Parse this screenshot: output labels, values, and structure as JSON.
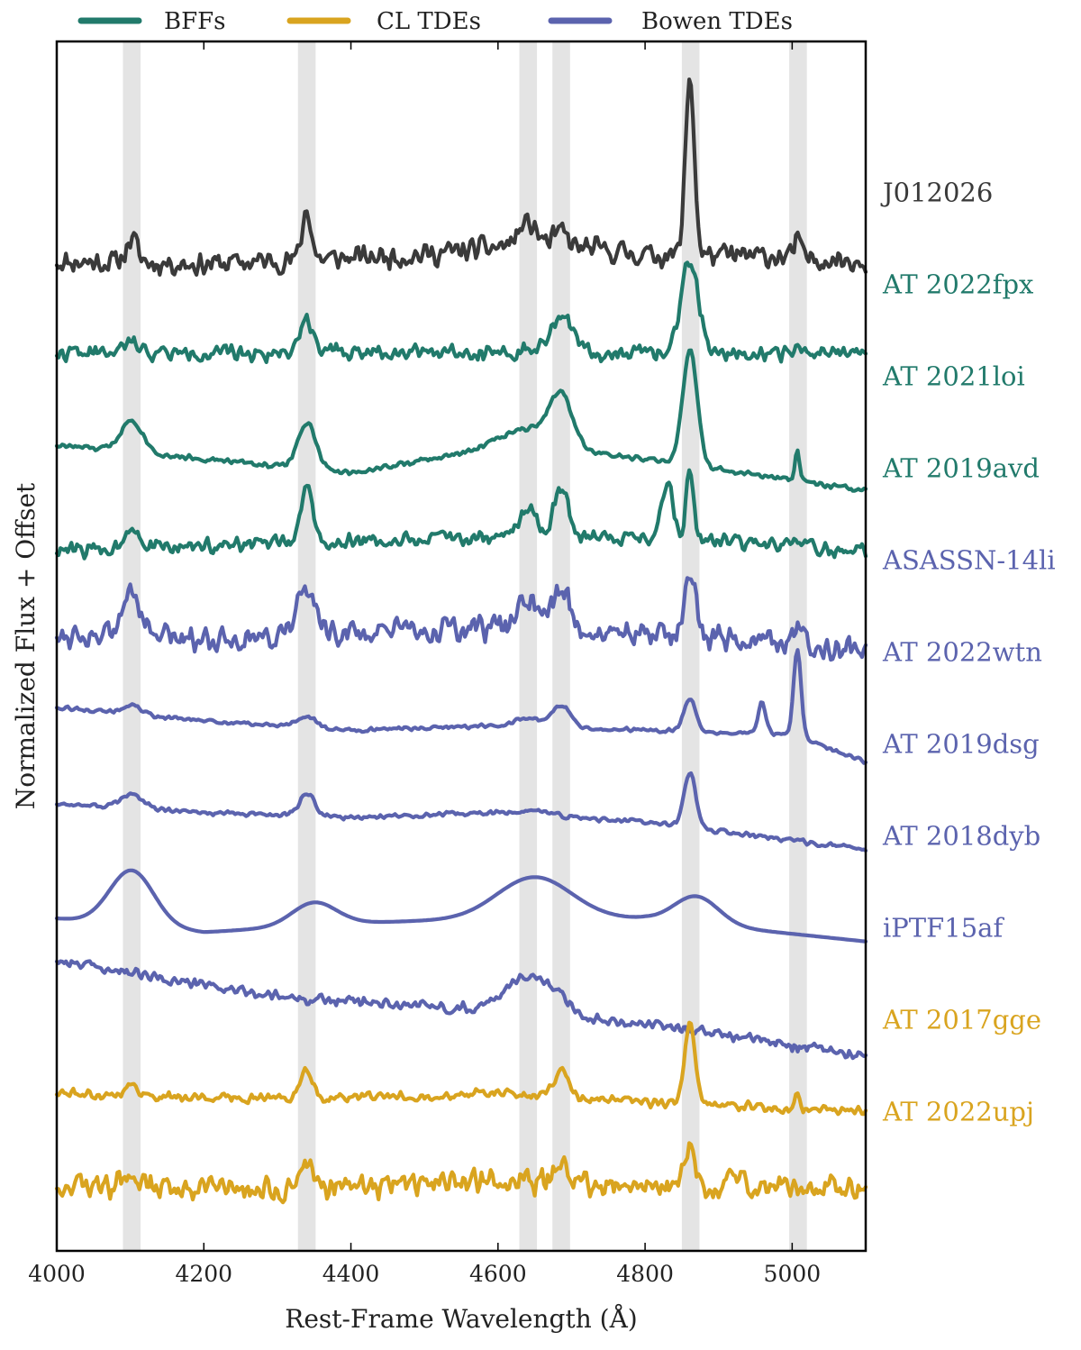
{
  "chart_data": {
    "type": "line",
    "title": "",
    "xlabel": "Rest-Frame Wavelength (Å)",
    "ylabel": "Normalized Flux + Offset",
    "xlim": [
      4000,
      5100
    ],
    "xticks": [
      4000,
      4200,
      4400,
      4600,
      4800,
      5000
    ],
    "grid": false,
    "legend_position": "top",
    "colors": {
      "BFFs": "#217a6b",
      "CL TDEs": "#d9a41f",
      "Bowen TDEs": "#5b63ae",
      "J012026": "#3a3a3a",
      "band": "#e4e4e4"
    },
    "legend": [
      {
        "name": "BFFs",
        "color": "#217a6b"
      },
      {
        "name": "CL TDEs",
        "color": "#d9a41f"
      },
      {
        "name": "Bowen TDEs",
        "color": "#5b63ae"
      }
    ],
    "shaded_bands": [
      [
        4090,
        4114
      ],
      [
        4328,
        4352
      ],
      [
        4629,
        4653
      ],
      [
        4674,
        4698
      ],
      [
        4850,
        4874
      ],
      [
        4996,
        5020
      ]
    ],
    "series": [
      {
        "name": "J012026",
        "group": "J012026",
        "color": "#3a3a3a",
        "offset": 10.0,
        "noise": 0.15,
        "seed": 11,
        "cont": [
          [
            4000,
            0.05
          ],
          [
            4200,
            0.02
          ],
          [
            4500,
            0.12
          ],
          [
            4650,
            0.25
          ],
          [
            4800,
            0.12
          ],
          [
            5000,
            0.1
          ],
          [
            5100,
            0.05
          ]
        ],
        "lines": [
          [
            4102,
            0.25,
            8
          ],
          [
            4340,
            0.55,
            6
          ],
          [
            4640,
            0.22,
            12
          ],
          [
            4686,
            0.15,
            8
          ],
          [
            4861,
            1.95,
            6
          ],
          [
            5007,
            0.25,
            3
          ]
        ]
      },
      {
        "name": "AT 2022fpx",
        "group": "BFFs",
        "color": "#217a6b",
        "offset": 9.0,
        "noise": 0.1,
        "seed": 22,
        "cont": [
          [
            4000,
            0.05
          ],
          [
            4300,
            0.05
          ],
          [
            4500,
            0.08
          ],
          [
            4700,
            0.05
          ],
          [
            5100,
            0.05
          ]
        ],
        "lines": [
          [
            4102,
            0.12,
            10
          ],
          [
            4340,
            0.35,
            10
          ],
          [
            4686,
            0.4,
            15
          ],
          [
            4861,
            1.0,
            12
          ],
          [
            5007,
            0.1,
            3
          ]
        ]
      },
      {
        "name": "AT 2021loi",
        "group": "BFFs",
        "color": "#217a6b",
        "offset": 8.0,
        "noise": 0.035,
        "seed": 33,
        "cont": [
          [
            4000,
            0.05
          ],
          [
            4200,
            -0.1
          ],
          [
            4400,
            -0.25
          ],
          [
            4600,
            0.02
          ],
          [
            4800,
            -0.1
          ],
          [
            5100,
            -0.45
          ]
        ],
        "lines": [
          [
            4102,
            0.35,
            15
          ],
          [
            4340,
            0.5,
            12
          ],
          [
            4650,
            0.25,
            40
          ],
          [
            4686,
            0.5,
            15
          ],
          [
            4861,
            1.25,
            10
          ],
          [
            5007,
            0.35,
            3
          ]
        ]
      },
      {
        "name": "AT 2019avd",
        "group": "BFFs",
        "color": "#217a6b",
        "offset": 7.0,
        "noise": 0.1,
        "seed": 44,
        "cont": [
          [
            4000,
            -0.1
          ],
          [
            4200,
            -0.05
          ],
          [
            4400,
            0.0
          ],
          [
            4600,
            0.05
          ],
          [
            4800,
            0.05
          ],
          [
            5100,
            -0.1
          ]
        ],
        "lines": [
          [
            4102,
            0.25,
            10
          ],
          [
            4340,
            0.6,
            8
          ],
          [
            4640,
            0.3,
            12
          ],
          [
            4686,
            0.55,
            10
          ],
          [
            4830,
            0.6,
            8
          ],
          [
            4861,
            0.8,
            5
          ]
        ]
      },
      {
        "name": "ASASSN-14li",
        "group": "Bowen TDEs",
        "color": "#5b63ae",
        "offset": 6.0,
        "noise": 0.17,
        "seed": 55,
        "cont": [
          [
            4000,
            0.0
          ],
          [
            4200,
            -0.05
          ],
          [
            4400,
            0.0
          ],
          [
            4600,
            0.05
          ],
          [
            4800,
            0.0
          ],
          [
            5100,
            -0.15
          ]
        ],
        "lines": [
          [
            4102,
            0.55,
            10
          ],
          [
            4340,
            0.45,
            15
          ],
          [
            4640,
            0.35,
            12
          ],
          [
            4686,
            0.45,
            12
          ],
          [
            4861,
            0.75,
            8
          ],
          [
            5007,
            0.2,
            4
          ]
        ]
      },
      {
        "name": "AT 2022wtn",
        "group": "Bowen TDEs",
        "color": "#5b63ae",
        "offset": 5.0,
        "noise": 0.025,
        "seed": 66,
        "cont": [
          [
            4000,
            0.2
          ],
          [
            4200,
            0.05
          ],
          [
            4400,
            -0.05
          ],
          [
            4600,
            0.0
          ],
          [
            4800,
            -0.05
          ],
          [
            5000,
            -0.1
          ],
          [
            5100,
            -0.4
          ]
        ],
        "lines": [
          [
            4102,
            0.1,
            12
          ],
          [
            4340,
            0.12,
            12
          ],
          [
            4640,
            0.1,
            15
          ],
          [
            4686,
            0.25,
            12
          ],
          [
            4861,
            0.35,
            8
          ],
          [
            4959,
            0.35,
            5
          ],
          [
            5007,
            0.95,
            5
          ]
        ]
      },
      {
        "name": "AT 2019dsg",
        "group": "Bowen TDEs",
        "color": "#5b63ae",
        "offset": 4.0,
        "noise": 0.03,
        "seed": 77,
        "cont": [
          [
            4000,
            0.15
          ],
          [
            4200,
            0.05
          ],
          [
            4400,
            0.0
          ],
          [
            4600,
            0.05
          ],
          [
            4800,
            -0.05
          ],
          [
            5100,
            -0.35
          ]
        ],
        "lines": [
          [
            4102,
            0.15,
            15
          ],
          [
            4340,
            0.25,
            10
          ],
          [
            4650,
            0.05,
            20
          ],
          [
            4861,
            0.6,
            8
          ]
        ]
      },
      {
        "name": "AT 2018dyb",
        "group": "Bowen TDEs",
        "color": "#5b63ae",
        "offset": 3.0,
        "noise": 0.0,
        "seed": 88,
        "cont": [
          [
            4000,
            -0.1
          ],
          [
            4200,
            -0.25
          ],
          [
            4400,
            -0.15
          ],
          [
            4600,
            -0.1
          ],
          [
            4800,
            -0.1
          ],
          [
            5100,
            -0.35
          ]
        ],
        "lines": [
          [
            4102,
            0.6,
            30
          ],
          [
            4350,
            0.25,
            30
          ],
          [
            4650,
            0.45,
            50
          ],
          [
            4870,
            0.3,
            30
          ]
        ]
      },
      {
        "name": "iPTF15af",
        "group": "Bowen TDEs",
        "color": "#5b63ae",
        "offset": 2.0,
        "noise": 0.07,
        "seed": 99,
        "cont": [
          [
            4000,
            0.45
          ],
          [
            4100,
            0.3
          ],
          [
            4300,
            0.05
          ],
          [
            4500,
            -0.05
          ],
          [
            4700,
            -0.15
          ],
          [
            4900,
            -0.35
          ],
          [
            5100,
            -0.6
          ]
        ],
        "lines": [
          [
            4640,
            0.4,
            30
          ],
          [
            4686,
            0.12,
            12
          ]
        ]
      },
      {
        "name": "AT 2017gge",
        "group": "CL TDEs",
        "color": "#d9a41f",
        "offset": 1.0,
        "noise": 0.06,
        "seed": 111,
        "cont": [
          [
            4000,
            0.0
          ],
          [
            4200,
            -0.05
          ],
          [
            4400,
            -0.05
          ],
          [
            4600,
            0.0
          ],
          [
            4800,
            -0.1
          ],
          [
            5100,
            -0.2
          ]
        ],
        "lines": [
          [
            4102,
            0.1,
            10
          ],
          [
            4340,
            0.3,
            8
          ],
          [
            4686,
            0.3,
            10
          ],
          [
            4861,
            0.9,
            7
          ],
          [
            5007,
            0.15,
            3
          ]
        ]
      },
      {
        "name": "AT 2022upj",
        "group": "CL TDEs",
        "color": "#d9a41f",
        "offset": 0.0,
        "noise": 0.16,
        "seed": 123,
        "cont": [
          [
            4000,
            0.0
          ],
          [
            4300,
            -0.05
          ],
          [
            4600,
            0.05
          ],
          [
            4800,
            0.0
          ],
          [
            5100,
            -0.05
          ]
        ],
        "lines": [
          [
            4102,
            0.12,
            10
          ],
          [
            4340,
            0.25,
            10
          ],
          [
            4686,
            0.3,
            5
          ],
          [
            4861,
            0.45,
            6
          ],
          [
            4920,
            0.15,
            8
          ]
        ]
      }
    ]
  }
}
